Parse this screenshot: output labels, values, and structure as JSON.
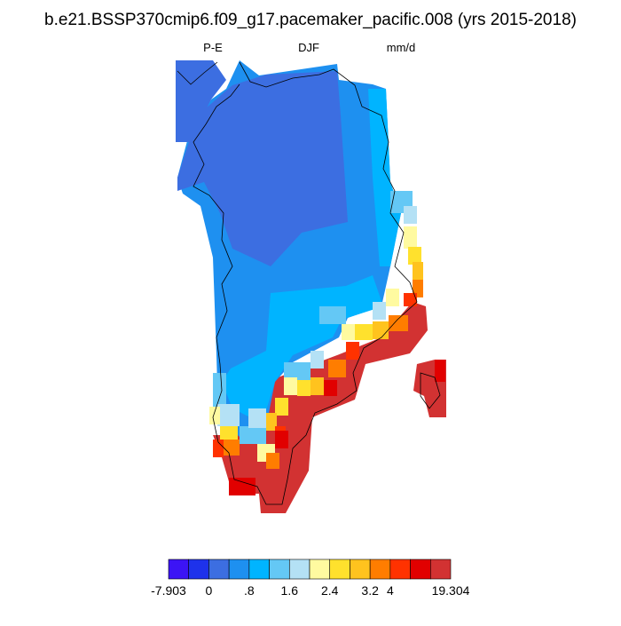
{
  "title": "b.e21.BSSP370cmip6.f09_g17.pacemaker_pacific.008 (yrs 2015-2018)",
  "labels": {
    "left": "P-E",
    "center": "DJF",
    "right": "mm/d"
  },
  "colorbar": {
    "colors": [
      "#3c14f5",
      "#1e32eb",
      "#3c6ee1",
      "#1e90f0",
      "#00b4ff",
      "#64c8f5",
      "#b4e1f5",
      "#fffaa0",
      "#ffe12d",
      "#ffc31e",
      "#ff7d00",
      "#ff3200",
      "#e10000",
      "#d23232"
    ],
    "ticks": [
      -7.903,
      0,
      {
        "value": 0.8,
        "label": ".8"
      },
      1.6,
      2.4,
      3.2,
      4,
      19.304
    ]
  }
}
